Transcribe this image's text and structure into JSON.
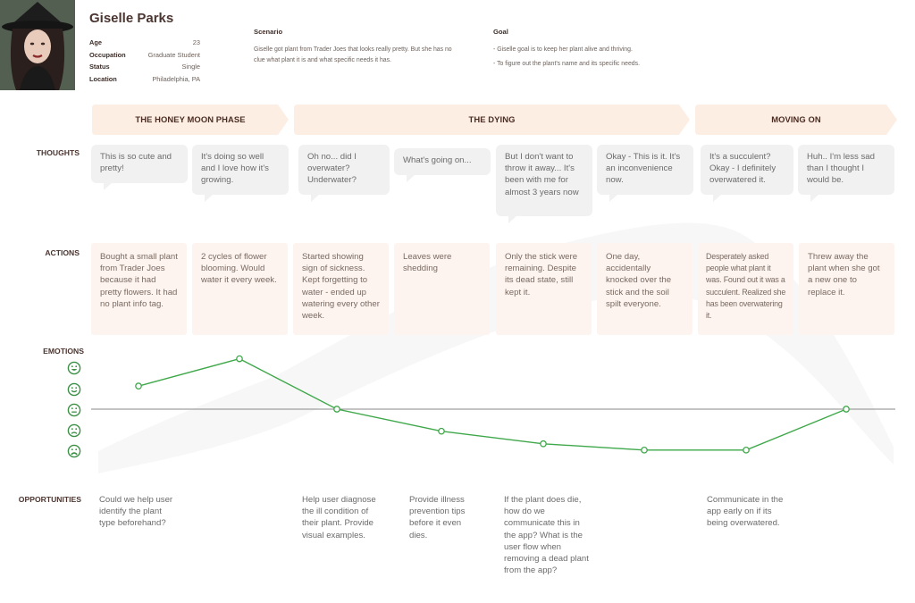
{
  "persona": {
    "name": "Giselle Parks",
    "details": [
      {
        "label": "Age",
        "value": "23"
      },
      {
        "label": "Occupation",
        "value": "Graduate Student"
      },
      {
        "label": "Status",
        "value": "Single"
      },
      {
        "label": "Location",
        "value": "Philadelphia, PA"
      }
    ]
  },
  "scenario": {
    "title": "Scenario",
    "text": "Giselle got plant from Trader Joes that looks really pretty. But she has no clue what plant it is and what specific needs it has."
  },
  "goal": {
    "title": "Goal",
    "items": [
      "- Giselle goal is to keep her plant alive and thriving.",
      "- To figure out the plant's name and its specific needs."
    ]
  },
  "phases": [
    {
      "label": "THE HONEY MOON PHASE"
    },
    {
      "label": "THE DYING"
    },
    {
      "label": "MOVING ON"
    }
  ],
  "row_labels": {
    "thoughts": "THOUGHTS",
    "actions": "ACTIONS",
    "emotions": "EMOTIONS",
    "opportunities": "OPPORTUNITIES"
  },
  "thoughts": [
    "This is so cute and pretty!",
    "It's doing so well and I love how it's growing.",
    "Oh no... did I overwater? Underwater?",
    "What's going on...",
    "But I don't want to throw it away... It's been with me for almost 3 years now",
    "Okay - This is it. It's an inconvenience now.",
    "It's a succulent? Okay - I definitely overwatered it.",
    "Huh.. I'm less sad than I thought I would be."
  ],
  "actions": [
    "Bought a small plant from Trader Joes because it had pretty flowers. It had no plant info tag.",
    "2 cycles of flower blooming. Would water it every week.",
    "Started showing sign of sickness. Kept forgetting to water - ended up watering every other week.",
    "Leaves were shedding",
    "Only the stick were remaining. Despite its dead state, still kept it.",
    "One day, accidentally knocked over the stick and the soil spilt everyone.",
    "Desperately asked people what plant it was. Found out it was a succulent. Realized she has been overwatering it.",
    "Threw away the plant when she got a new one to replace it."
  ],
  "emotion_scale": [
    "very-happy-face-icon",
    "happy-face-icon",
    "neutral-face-icon",
    "sad-face-icon",
    "very-sad-face-icon"
  ],
  "chart_data": {
    "type": "line",
    "categories": [
      "1",
      "2",
      "3",
      "4",
      "5",
      "6",
      "7",
      "8"
    ],
    "values": [
      1.1,
      2.4,
      0,
      -1.05,
      -1.65,
      -1.95,
      -1.95,
      0
    ],
    "ylim": [
      -2,
      2
    ],
    "color": "#3fa84a",
    "baseline_color": "#888888"
  },
  "opportunities": [
    "Could we help user identify the plant type beforehand?",
    "",
    "Help user diagnose the ill condition of their plant. Provide visual examples.",
    "Provide illness prevention tips before it even dies.",
    "If the plant does die, how do we communicate this in the app? What is the user flow when removing a dead plant from the app?",
    "",
    "Communicate in the app early on if its being overwatered.",
    ""
  ],
  "colors": {
    "phase_fill": "#fdeee4",
    "thought_fill": "#f1f1f1",
    "action_fill": "#fdf4ef",
    "emotion_line": "#3fa84a"
  }
}
